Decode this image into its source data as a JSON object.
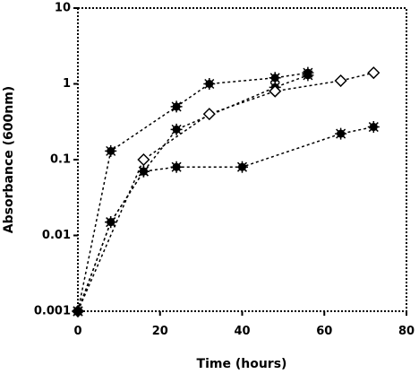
{
  "chart_data": {
    "type": "line",
    "xlabel": "Time (hours)",
    "ylabel": "Absorbance (600nm)",
    "xlim": [
      0,
      80
    ],
    "ylim": [
      0.001,
      10
    ],
    "yscale": "log",
    "x_ticks": [
      0,
      20,
      40,
      60,
      80
    ],
    "y_ticks": [
      0.001,
      0.01,
      0.1,
      1,
      10
    ],
    "y_tick_labels": [
      "0.001",
      "0.01",
      "0.1",
      "1",
      "10"
    ],
    "grid": false,
    "legend": "none",
    "series": [
      {
        "marker": "asterisk",
        "x": [
          0,
          8,
          24,
          32,
          48,
          56
        ],
        "y": [
          0.001,
          0.13,
          0.5,
          1.0,
          1.2,
          1.4
        ]
      },
      {
        "marker": "asterisk",
        "x": [
          0,
          8,
          16,
          24,
          48,
          56
        ],
        "y": [
          0.001,
          0.015,
          0.07,
          0.25,
          0.9,
          1.3
        ]
      },
      {
        "marker": "diamond-open",
        "x": [
          0,
          16,
          32,
          48,
          64,
          72
        ],
        "y": [
          0.001,
          0.1,
          0.4,
          0.8,
          1.1,
          1.4
        ]
      },
      {
        "marker": "asterisk",
        "x": [
          0,
          8,
          16,
          24,
          40,
          64,
          72
        ],
        "y": [
          0.001,
          0.015,
          0.07,
          0.08,
          0.08,
          0.22,
          0.27
        ]
      }
    ]
  }
}
